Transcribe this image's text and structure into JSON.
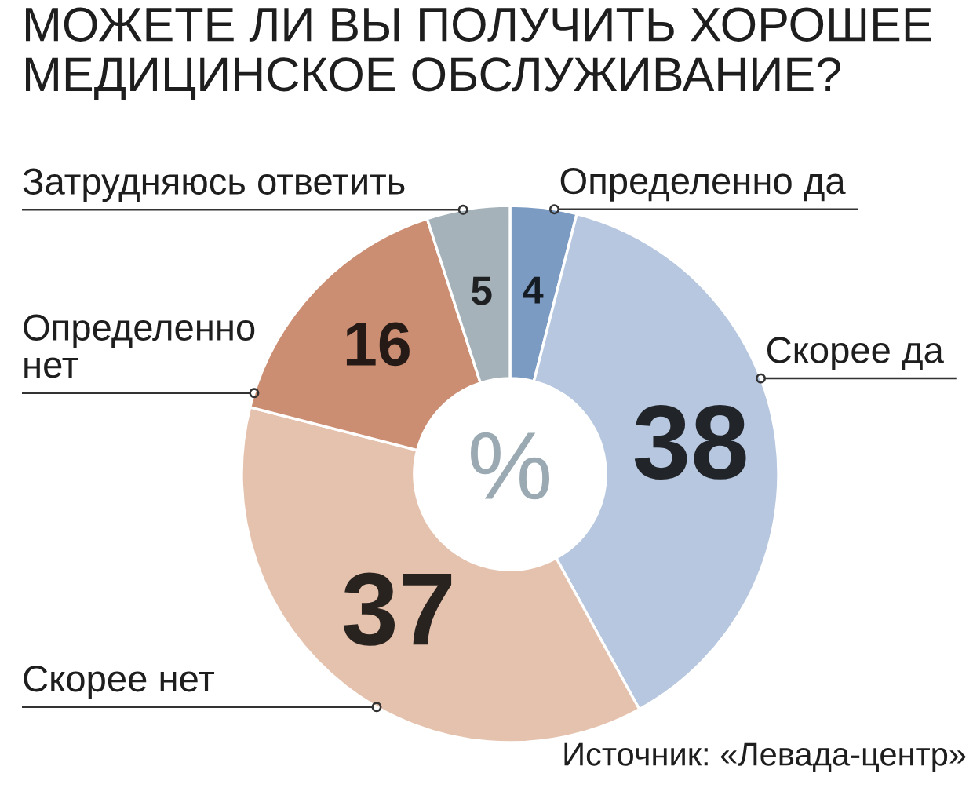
{
  "chart_data": {
    "type": "donut",
    "title": "МОЖЕТЕ ЛИ ВЫ ПОЛУЧИТЬ ХОРОШЕЕ\nМЕДИЦИНСКОЕ ОБСЛУЖИВАНИЕ?",
    "categories": [
      "Определенно да",
      "Скорее да",
      "Скорее нет",
      "Определенно\nнет",
      "Затрудняюсь ответить"
    ],
    "values": [
      4,
      38,
      37,
      16,
      5
    ],
    "colors": [
      "#7c9bc3",
      "#b6c7df",
      "#e5c2ae",
      "#cc8e73",
      "#a5b2ba"
    ],
    "data_labels": true,
    "annotations": [
      "%",
      "Источник: «Левада-центр»"
    ]
  }
}
